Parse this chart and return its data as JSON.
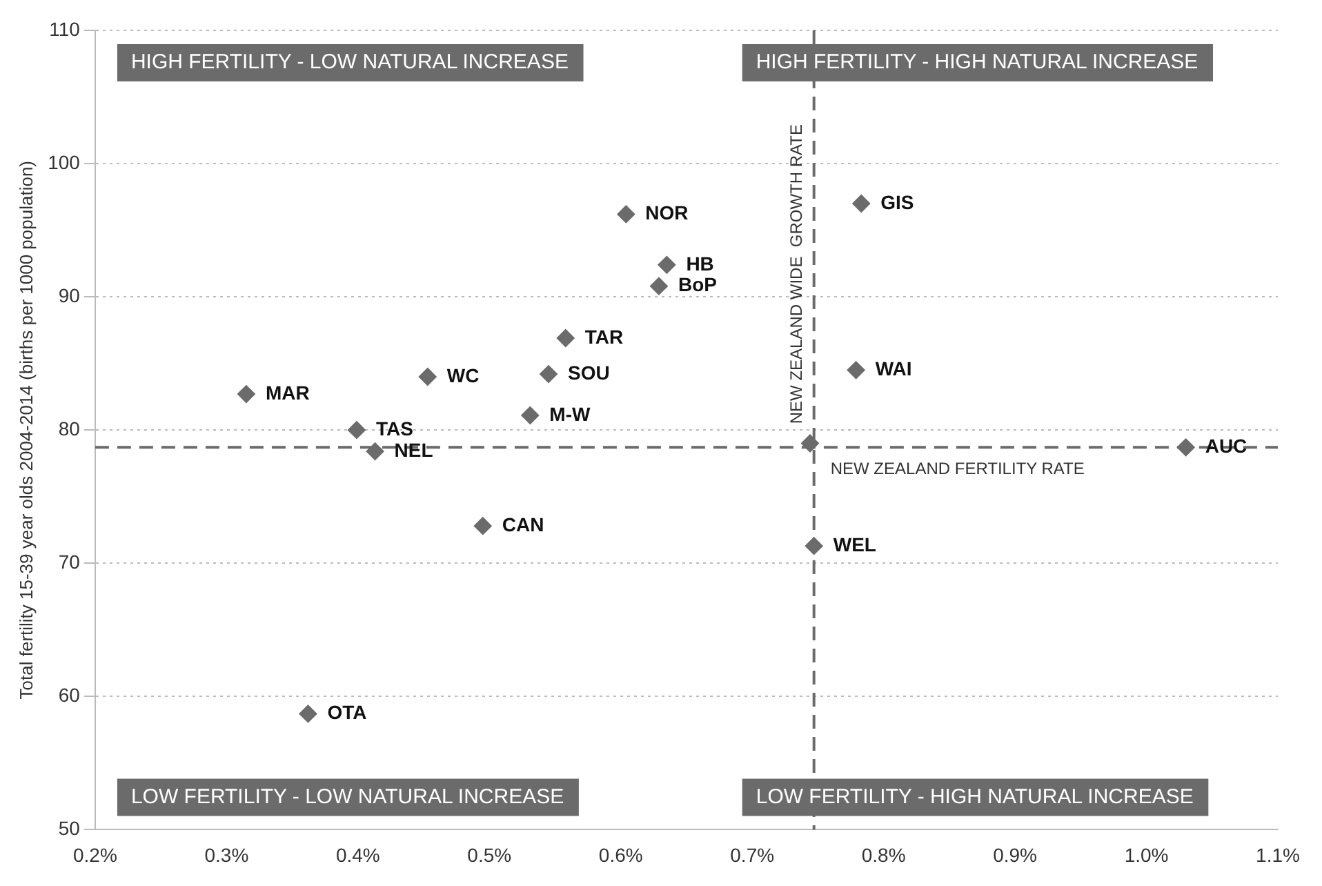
{
  "chart_data": {
    "type": "scatter",
    "ylabel": "Total fertility 15-39 year olds 2004-2014 (births per 1000 population)",
    "x": [
      0.315,
      0.399,
      0.413,
      0.453,
      0.495,
      0.362,
      0.531,
      0.545,
      0.558,
      0.604,
      0.635,
      0.629,
      0.783,
      0.779,
      0.744,
      0.747,
      1.03
    ],
    "series": [
      {
        "color": "#6b6b6b",
        "values": [
          82.7,
          80.0,
          78.4,
          84.0,
          72.8,
          58.7,
          81.1,
          84.2,
          86.9,
          96.2,
          92.4,
          90.8,
          97.0,
          84.5,
          79.0,
          71.3,
          78.7
        ]
      }
    ],
    "marker": "diamond",
    "grid": "y",
    "legend": false,
    "xlim": [
      0.2,
      1.1
    ],
    "xticks": [
      {
        "value": 0.2,
        "label": "0.2%"
      },
      {
        "value": 0.3,
        "label": "0.3%"
      },
      {
        "value": 0.4,
        "label": "0.4%"
      },
      {
        "value": 0.5,
        "label": "0.5%"
      },
      {
        "value": 0.6,
        "label": "0.6%"
      },
      {
        "value": 0.7,
        "label": "0.7%"
      },
      {
        "value": 0.8,
        "label": "0.8%"
      },
      {
        "value": 0.9,
        "label": "0.9%"
      },
      {
        "value": 1.0,
        "label": "1.0%"
      },
      {
        "value": 1.1,
        "label": "1.1%"
      }
    ],
    "ylim": [
      50,
      110
    ],
    "yticks": [
      50,
      60,
      70,
      80,
      90,
      100,
      110
    ],
    "ref_lines": [
      {
        "axis": "y",
        "value": 78.7,
        "label": "NEW ZEALAND FERTILITY RATE",
        "color": "#6b6b6b",
        "line_style": "dashed"
      },
      {
        "axis": "x",
        "value": 0.747,
        "label": "NEW ZEALAND WIDE  GROWTH RATE",
        "color": "#6b6b6b",
        "line_style": "dashed"
      }
    ],
    "annotations": [
      "HIGH FERTILITY - LOW NATURAL INCREASE",
      "HIGH FERTILITY - HIGH NATURAL INCREASE",
      "LOW FERTILITY - LOW NATURAL INCREASE",
      "LOW FERTILITY - HIGH NATURAL INCREASE",
      {
        "text": "MAR",
        "x": 0.315,
        "y": 82.7
      },
      {
        "text": "TAS",
        "x": 0.399,
        "y": 80.0
      },
      {
        "text": "NEL",
        "x": 0.413,
        "y": 78.4
      },
      {
        "text": "WC",
        "x": 0.453,
        "y": 84.0
      },
      {
        "text": "CAN",
        "x": 0.495,
        "y": 72.8
      },
      {
        "text": "OTA",
        "x": 0.362,
        "y": 58.7
      },
      {
        "text": "M-W",
        "x": 0.531,
        "y": 81.1
      },
      {
        "text": "SOU",
        "x": 0.545,
        "y": 84.2
      },
      {
        "text": "TAR",
        "x": 0.558,
        "y": 86.9
      },
      {
        "text": "NOR",
        "x": 0.604,
        "y": 96.2
      },
      {
        "text": "HB",
        "x": 0.635,
        "y": 92.4
      },
      {
        "text": "BoP",
        "x": 0.629,
        "y": 90.8
      },
      {
        "text": "GIS",
        "x": 0.783,
        "y": 97.0
      },
      {
        "text": "WAI",
        "x": 0.779,
        "y": 84.5
      },
      {
        "text": "WEL",
        "x": 0.747,
        "y": 71.3
      },
      {
        "text": "AUC",
        "x": 1.03,
        "y": 78.7
      }
    ]
  }
}
